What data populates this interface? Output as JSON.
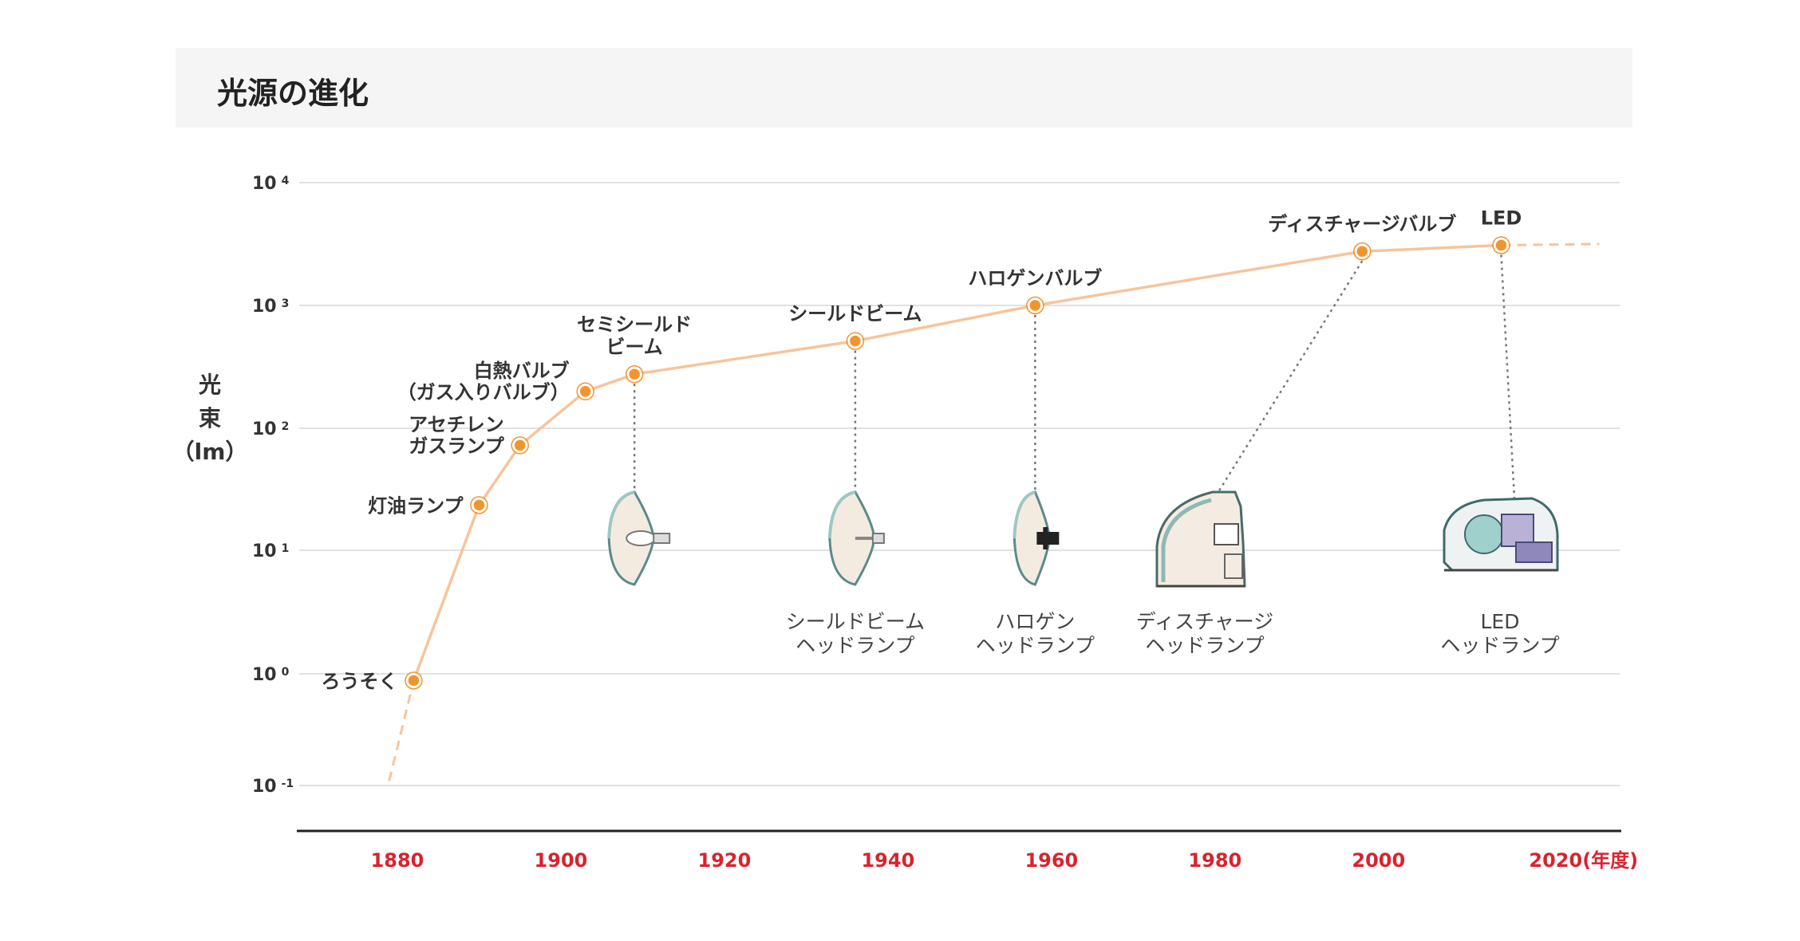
{
  "title": "光源の進化",
  "chart_data": {
    "type": "line",
    "ylabel": [
      "光",
      "束",
      "（lm）"
    ],
    "yscale": "log",
    "y_ticks": [
      {
        "base": "10",
        "exp": "-1",
        "value": -1
      },
      {
        "base": "10",
        "exp": "0",
        "value": 0
      },
      {
        "base": "10",
        "exp": "1",
        "value": 1
      },
      {
        "base": "10",
        "exp": "2",
        "value": 2
      },
      {
        "base": "10",
        "exp": "3",
        "value": 3
      },
      {
        "base": "10",
        "exp": "4",
        "value": 4
      }
    ],
    "x_ticks": [
      "1880",
      "1900",
      "1920",
      "1940",
      "1960",
      "1980",
      "2000",
      "2020(年度)"
    ],
    "x_tick_values": [
      1880,
      1900,
      1920,
      1940,
      1960,
      1980,
      2000,
      2020
    ],
    "xlim": [
      1868,
      2029
    ],
    "ylim": [
      -1,
      4
    ],
    "grid": true,
    "line_color": "#f7c49a",
    "marker_color": "#f0952e",
    "axis_color": "#222222",
    "xtick_color": "#d9232e",
    "dashed_start": {
      "x": 1879,
      "log10_lm": -0.96
    },
    "dashed_end": {
      "x": 2027,
      "log10_lm": 3.5
    },
    "points": [
      {
        "year": 1882,
        "log10_lm": -0.06,
        "label": [
          "ろうそく"
        ],
        "label_anchor": "left"
      },
      {
        "year": 1890,
        "log10_lm": 1.37,
        "label": [
          "灯油ランプ"
        ],
        "label_anchor": "left"
      },
      {
        "year": 1895,
        "log10_lm": 1.86,
        "label": [
          "アセチレン",
          "ガスランプ"
        ],
        "label_anchor": "left"
      },
      {
        "year": 1903,
        "log10_lm": 2.3,
        "label": [
          "白熱バルブ",
          "（ガス入りバルブ）"
        ],
        "label_anchor": "left"
      },
      {
        "year": 1909,
        "log10_lm": 2.44,
        "label": [
          "セミシールド",
          "ビーム"
        ],
        "label_anchor": "top"
      },
      {
        "year": 1936,
        "log10_lm": 2.71,
        "label": [
          "シールドビーム"
        ],
        "label_anchor": "top"
      },
      {
        "year": 1958,
        "log10_lm": 3.0,
        "label": [
          "ハロゲンバルブ"
        ],
        "label_anchor": "top"
      },
      {
        "year": 1998,
        "log10_lm": 3.44,
        "label": [
          "ディスチャージバルブ"
        ],
        "label_anchor": "top"
      },
      {
        "year": 2015,
        "log10_lm": 3.49,
        "label": [
          "LED"
        ],
        "label_anchor": "top"
      }
    ],
    "headlamps": [
      {
        "point": 4,
        "icon": "semi-sealed-beam-lamp-icon",
        "caption": []
      },
      {
        "point": 5,
        "icon": "sealed-beam-headlamp-icon",
        "caption": [
          "シールドビーム",
          "ヘッドランプ"
        ]
      },
      {
        "point": 6,
        "icon": "halogen-headlamp-icon",
        "caption": [
          "ハロゲン",
          "ヘッドランプ"
        ]
      },
      {
        "point": 7,
        "icon": "discharge-headlamp-icon",
        "caption": [
          "ディスチャージ",
          "ヘッドランプ"
        ]
      },
      {
        "point": 8,
        "icon": "led-headlamp-icon",
        "caption": [
          "LED",
          "ヘッドランプ"
        ]
      }
    ]
  }
}
